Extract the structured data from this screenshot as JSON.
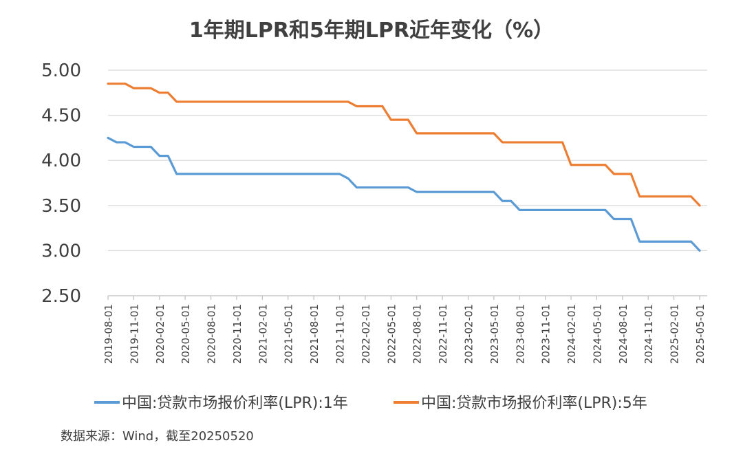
{
  "source_note": "数据来源：Wind，截至20250520",
  "chart_data": {
    "type": "line",
    "title": "1年期LPR和5年期LPR近年变化（%）",
    "xlabel": "",
    "ylabel": "",
    "ylim": [
      2.5,
      5.0
    ],
    "yticks": [
      "5.00",
      "4.50",
      "4.00",
      "3.50",
      "3.00",
      "2.50"
    ],
    "grid": "horizontal",
    "legend_position": "bottom",
    "x_start": "2019-08",
    "x_end": "2025-05",
    "x_tick_labels": [
      "2019-08-01",
      "2019-11-01",
      "2020-02-01",
      "2020-05-01",
      "2020-08-01",
      "2020-11-01",
      "2021-02-01",
      "2021-05-01",
      "2021-08-01",
      "2021-11-01",
      "2022-02-01",
      "2022-05-01",
      "2022-08-01",
      "2022-11-01",
      "2023-02-01",
      "2023-05-01",
      "2023-08-01",
      "2023-11-01",
      "2024-02-01",
      "2024-05-01",
      "2024-08-01",
      "2024-11-01",
      "2025-02-01",
      "2025-05-01"
    ],
    "series": [
      {
        "name": "中国:贷款市场报价利率(LPR):1年",
        "color": "#5B9BD5",
        "points": [
          [
            "2019-08",
            4.25
          ],
          [
            "2019-09",
            4.2
          ],
          [
            "2019-10",
            4.2
          ],
          [
            "2019-11",
            4.15
          ],
          [
            "2019-12",
            4.15
          ],
          [
            "2020-01",
            4.15
          ],
          [
            "2020-02",
            4.05
          ],
          [
            "2020-03",
            4.05
          ],
          [
            "2020-04",
            3.85
          ],
          [
            "2020-05",
            3.85
          ],
          [
            "2020-06",
            3.85
          ],
          [
            "2020-07",
            3.85
          ],
          [
            "2020-08",
            3.85
          ],
          [
            "2020-09",
            3.85
          ],
          [
            "2020-10",
            3.85
          ],
          [
            "2020-11",
            3.85
          ],
          [
            "2020-12",
            3.85
          ],
          [
            "2021-01",
            3.85
          ],
          [
            "2021-02",
            3.85
          ],
          [
            "2021-03",
            3.85
          ],
          [
            "2021-04",
            3.85
          ],
          [
            "2021-05",
            3.85
          ],
          [
            "2021-06",
            3.85
          ],
          [
            "2021-07",
            3.85
          ],
          [
            "2021-08",
            3.85
          ],
          [
            "2021-09",
            3.85
          ],
          [
            "2021-10",
            3.85
          ],
          [
            "2021-11",
            3.85
          ],
          [
            "2021-12",
            3.8
          ],
          [
            "2022-01",
            3.7
          ],
          [
            "2022-02",
            3.7
          ],
          [
            "2022-03",
            3.7
          ],
          [
            "2022-04",
            3.7
          ],
          [
            "2022-05",
            3.7
          ],
          [
            "2022-06",
            3.7
          ],
          [
            "2022-07",
            3.7
          ],
          [
            "2022-08",
            3.65
          ],
          [
            "2022-09",
            3.65
          ],
          [
            "2022-10",
            3.65
          ],
          [
            "2022-11",
            3.65
          ],
          [
            "2022-12",
            3.65
          ],
          [
            "2023-01",
            3.65
          ],
          [
            "2023-02",
            3.65
          ],
          [
            "2023-03",
            3.65
          ],
          [
            "2023-04",
            3.65
          ],
          [
            "2023-05",
            3.65
          ],
          [
            "2023-06",
            3.55
          ],
          [
            "2023-07",
            3.55
          ],
          [
            "2023-08",
            3.45
          ],
          [
            "2023-09",
            3.45
          ],
          [
            "2023-10",
            3.45
          ],
          [
            "2023-11",
            3.45
          ],
          [
            "2023-12",
            3.45
          ],
          [
            "2024-01",
            3.45
          ],
          [
            "2024-02",
            3.45
          ],
          [
            "2024-03",
            3.45
          ],
          [
            "2024-04",
            3.45
          ],
          [
            "2024-05",
            3.45
          ],
          [
            "2024-06",
            3.45
          ],
          [
            "2024-07",
            3.35
          ],
          [
            "2024-08",
            3.35
          ],
          [
            "2024-09",
            3.35
          ],
          [
            "2024-10",
            3.1
          ],
          [
            "2024-11",
            3.1
          ],
          [
            "2024-12",
            3.1
          ],
          [
            "2025-01",
            3.1
          ],
          [
            "2025-02",
            3.1
          ],
          [
            "2025-03",
            3.1
          ],
          [
            "2025-04",
            3.1
          ],
          [
            "2025-05",
            3.0
          ]
        ]
      },
      {
        "name": "中国:贷款市场报价利率(LPR):5年",
        "color": "#ED7D31",
        "points": [
          [
            "2019-08",
            4.85
          ],
          [
            "2019-09",
            4.85
          ],
          [
            "2019-10",
            4.85
          ],
          [
            "2019-11",
            4.8
          ],
          [
            "2019-12",
            4.8
          ],
          [
            "2020-01",
            4.8
          ],
          [
            "2020-02",
            4.75
          ],
          [
            "2020-03",
            4.75
          ],
          [
            "2020-04",
            4.65
          ],
          [
            "2020-05",
            4.65
          ],
          [
            "2020-06",
            4.65
          ],
          [
            "2020-07",
            4.65
          ],
          [
            "2020-08",
            4.65
          ],
          [
            "2020-09",
            4.65
          ],
          [
            "2020-10",
            4.65
          ],
          [
            "2020-11",
            4.65
          ],
          [
            "2020-12",
            4.65
          ],
          [
            "2021-01",
            4.65
          ],
          [
            "2021-02",
            4.65
          ],
          [
            "2021-03",
            4.65
          ],
          [
            "2021-04",
            4.65
          ],
          [
            "2021-05",
            4.65
          ],
          [
            "2021-06",
            4.65
          ],
          [
            "2021-07",
            4.65
          ],
          [
            "2021-08",
            4.65
          ],
          [
            "2021-09",
            4.65
          ],
          [
            "2021-10",
            4.65
          ],
          [
            "2021-11",
            4.65
          ],
          [
            "2021-12",
            4.65
          ],
          [
            "2022-01",
            4.6
          ],
          [
            "2022-02",
            4.6
          ],
          [
            "2022-03",
            4.6
          ],
          [
            "2022-04",
            4.6
          ],
          [
            "2022-05",
            4.45
          ],
          [
            "2022-06",
            4.45
          ],
          [
            "2022-07",
            4.45
          ],
          [
            "2022-08",
            4.3
          ],
          [
            "2022-09",
            4.3
          ],
          [
            "2022-10",
            4.3
          ],
          [
            "2022-11",
            4.3
          ],
          [
            "2022-12",
            4.3
          ],
          [
            "2023-01",
            4.3
          ],
          [
            "2023-02",
            4.3
          ],
          [
            "2023-03",
            4.3
          ],
          [
            "2023-04",
            4.3
          ],
          [
            "2023-05",
            4.3
          ],
          [
            "2023-06",
            4.2
          ],
          [
            "2023-07",
            4.2
          ],
          [
            "2023-08",
            4.2
          ],
          [
            "2023-09",
            4.2
          ],
          [
            "2023-10",
            4.2
          ],
          [
            "2023-11",
            4.2
          ],
          [
            "2023-12",
            4.2
          ],
          [
            "2024-01",
            4.2
          ],
          [
            "2024-02",
            3.95
          ],
          [
            "2024-03",
            3.95
          ],
          [
            "2024-04",
            3.95
          ],
          [
            "2024-05",
            3.95
          ],
          [
            "2024-06",
            3.95
          ],
          [
            "2024-07",
            3.85
          ],
          [
            "2024-08",
            3.85
          ],
          [
            "2024-09",
            3.85
          ],
          [
            "2024-10",
            3.6
          ],
          [
            "2024-11",
            3.6
          ],
          [
            "2024-12",
            3.6
          ],
          [
            "2025-01",
            3.6
          ],
          [
            "2025-02",
            3.6
          ],
          [
            "2025-03",
            3.6
          ],
          [
            "2025-04",
            3.6
          ],
          [
            "2025-05",
            3.5
          ]
        ]
      }
    ]
  }
}
